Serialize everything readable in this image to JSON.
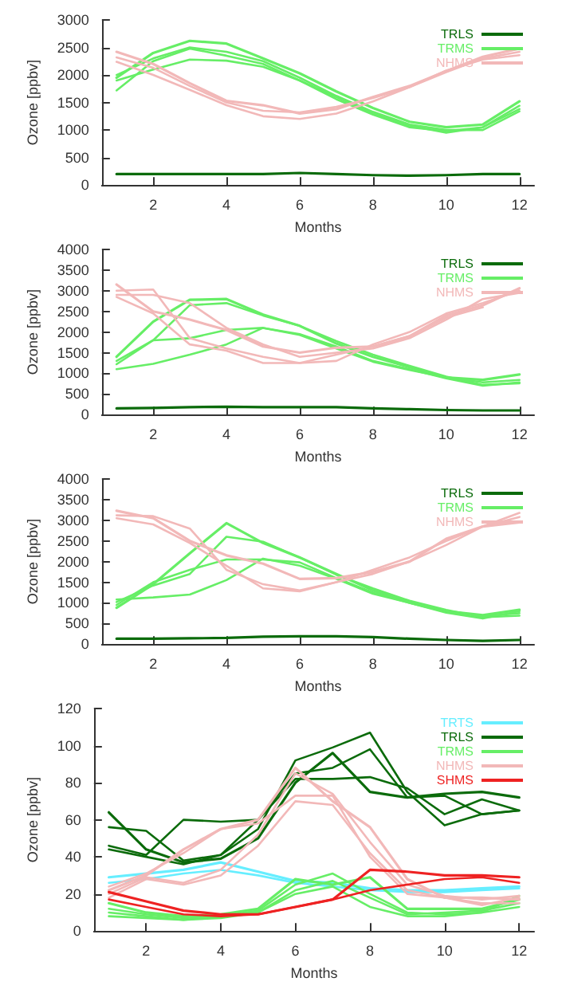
{
  "chart_data": [
    {
      "type": "line",
      "xlabel": "Months",
      "ylabel": "Ozone [ppbv]",
      "x": [
        1,
        2,
        3,
        4,
        5,
        6,
        7,
        8,
        9,
        10,
        11,
        12
      ],
      "xlim": [
        0.6,
        12.4
      ],
      "xticks": [
        2,
        4,
        6,
        8,
        10,
        12
      ],
      "ylim": [
        0,
        3000
      ],
      "yticks": [
        0,
        500,
        1000,
        1500,
        2000,
        2500,
        3000
      ],
      "legend": "top right",
      "series": [
        {
          "name": "TRLS",
          "color": "#0b6b0b",
          "values": [
            200,
            200,
            200,
            200,
            200,
            220,
            200,
            180,
            170,
            180,
            200,
            200
          ]
        },
        {
          "name": "TRMS",
          "color": "#66ee66",
          "values": [
            1950,
            2400,
            2620,
            2570,
            2300,
            2030,
            1700,
            1400,
            1150,
            1050,
            1100,
            1520
          ]
        },
        {
          "color": "#66ee66",
          "values": [
            2000,
            2300,
            2500,
            2420,
            2250,
            1950,
            1620,
            1330,
            1100,
            1000,
            1000,
            1340
          ]
        },
        {
          "color": "#66ee66",
          "values": [
            1720,
            2250,
            2480,
            2350,
            2200,
            1900,
            1600,
            1300,
            1080,
            950,
            1050,
            1380
          ]
        },
        {
          "color": "#66ee66",
          "values": [
            1900,
            2100,
            2280,
            2260,
            2150,
            1900,
            1560,
            1280,
            1050,
            980,
            1050,
            1440
          ]
        },
        {
          "name": "NHMS",
          "color": "#f2b8b8",
          "values": [
            2420,
            2200,
            1850,
            1530,
            1450,
            1300,
            1380,
            1600,
            1800,
            2070,
            2330,
            2480
          ]
        },
        {
          "color": "#f2b8b8",
          "values": [
            2320,
            2130,
            1800,
            1500,
            1350,
            1320,
            1420,
            1580,
            1780,
            2050,
            2300,
            2420
          ]
        },
        {
          "color": "#f2b8b8",
          "values": [
            2240,
            2000,
            1730,
            1450,
            1250,
            1200,
            1300,
            1520,
            1780,
            2080,
            2280,
            2360
          ]
        }
      ]
    },
    {
      "type": "line",
      "xlabel": "Months",
      "ylabel": "Ozone [ppbv]",
      "x": [
        1,
        2,
        3,
        4,
        5,
        6,
        7,
        8,
        9,
        10,
        11,
        12
      ],
      "xlim": [
        0.6,
        12.4
      ],
      "xticks": [
        2,
        4,
        6,
        8,
        10,
        12
      ],
      "ylim": [
        0,
        4000
      ],
      "yticks": [
        0,
        500,
        1000,
        1500,
        2000,
        2500,
        3000,
        3500,
        4000
      ],
      "legend": "top right",
      "series": [
        {
          "name": "TRLS",
          "color": "#0b6b0b",
          "values": [
            150,
            160,
            180,
            190,
            180,
            180,
            180,
            150,
            130,
            110,
            100,
            100
          ]
        },
        {
          "name": "TRMS",
          "color": "#66ee66",
          "values": [
            1400,
            2250,
            2780,
            2800,
            2420,
            2150,
            1720,
            1400,
            1150,
            900,
            840,
            970
          ]
        },
        {
          "color": "#66ee66",
          "values": [
            1220,
            1800,
            2650,
            2700,
            2400,
            2150,
            1780,
            1450,
            1180,
            920,
            720,
            760
          ]
        },
        {
          "color": "#66ee66",
          "values": [
            1300,
            1800,
            1850,
            2050,
            2100,
            1930,
            1600,
            1280,
            1080,
            900,
            780,
            840
          ]
        },
        {
          "color": "#66ee66",
          "values": [
            1100,
            1230,
            1450,
            1700,
            2100,
            1950,
            1650,
            1300,
            1100,
            880,
            700,
            780
          ]
        },
        {
          "name": "NHMS",
          "color": "#f2b8b8",
          "values": [
            3150,
            2500,
            2300,
            2050,
            1650,
            1500,
            1620,
            1650,
            1900,
            2400,
            2650,
            3060
          ]
        },
        {
          "color": "#f2b8b8",
          "values": [
            3000,
            3030,
            1850,
            1600,
            1400,
            1250,
            1300,
            1700,
            2000,
            2450,
            2700,
            3000
          ]
        },
        {
          "color": "#f2b8b8",
          "values": [
            2900,
            2900,
            2700,
            2100,
            1700,
            1400,
            1500,
            1600,
            1850,
            2300,
            2800,
            2950
          ]
        },
        {
          "color": "#f2b8b8",
          "values": [
            2850,
            2450,
            1700,
            1550,
            1250,
            1250,
            1450,
            1650,
            1900,
            2350,
            2600,
            null
          ]
        }
      ]
    },
    {
      "type": "line",
      "xlabel": "Months",
      "ylabel": "Ozone [ppbv]",
      "x": [
        1,
        2,
        3,
        4,
        5,
        6,
        7,
        8,
        9,
        10,
        11,
        12
      ],
      "xlim": [
        0.6,
        12.4
      ],
      "xticks": [
        2,
        4,
        6,
        8,
        10,
        12
      ],
      "ylim": [
        0,
        4000
      ],
      "yticks": [
        0,
        500,
        1000,
        1500,
        2000,
        2500,
        3000,
        3500,
        4000
      ],
      "legend": "top right",
      "series": [
        {
          "name": "TRLS",
          "color": "#0b6b0b",
          "values": [
            130,
            130,
            140,
            150,
            180,
            190,
            190,
            170,
            130,
            100,
            80,
            100
          ]
        },
        {
          "name": "TRMS",
          "color": "#66ee66",
          "values": [
            880,
            1450,
            2200,
            2930,
            2450,
            2100,
            1700,
            1300,
            1030,
            800,
            700,
            830
          ]
        },
        {
          "color": "#66ee66",
          "values": [
            1020,
            1420,
            1700,
            2600,
            2480,
            2100,
            1680,
            1350,
            1050,
            830,
            650,
            690
          ]
        },
        {
          "color": "#66ee66",
          "values": [
            950,
            1500,
            1800,
            2050,
            2050,
            1980,
            1600,
            1250,
            1000,
            780,
            680,
            750
          ]
        },
        {
          "color": "#66ee66",
          "values": [
            1080,
            1130,
            1200,
            1550,
            2070,
            1900,
            1580,
            1220,
            1000,
            760,
            620,
            800
          ]
        },
        {
          "name": "NHMS",
          "color": "#f2b8b8",
          "values": [
            3230,
            3050,
            2500,
            2150,
            1950,
            1580,
            1600,
            1750,
            2000,
            2550,
            2850,
            2950
          ]
        },
        {
          "color": "#f2b8b8",
          "values": [
            3120,
            3100,
            2800,
            1800,
            1450,
            1300,
            1500,
            1800,
            2100,
            2500,
            2850,
            3180
          ]
        },
        {
          "color": "#f2b8b8",
          "values": [
            3050,
            2900,
            2450,
            1900,
            1350,
            1280,
            1500,
            1700,
            2000,
            2400,
            2850,
            3080
          ]
        }
      ]
    },
    {
      "type": "line",
      "xlabel": "Months",
      "ylabel": "Ozone [ppbv]",
      "x": [
        1,
        2,
        3,
        4,
        5,
        6,
        7,
        8,
        9,
        10,
        11,
        12
      ],
      "xlim": [
        0.6,
        12.4
      ],
      "xticks": [
        2,
        4,
        6,
        8,
        10,
        12
      ],
      "ylim": [
        0,
        120
      ],
      "yticks": [
        0,
        20,
        40,
        60,
        80,
        100,
        120
      ],
      "legend": "top right",
      "series": [
        {
          "name": "TRTS",
          "color": "#66eeff",
          "values": [
            29,
            31,
            33,
            37,
            32,
            27,
            26,
            23,
            22,
            22,
            23,
            24
          ]
        },
        {
          "color": "#66eeff",
          "values": [
            26,
            28,
            31,
            33,
            30,
            26,
            24,
            22,
            21,
            21,
            22,
            23
          ]
        },
        {
          "name": "TRLS",
          "color": "#0b6b0b",
          "values": [
            64,
            44,
            37,
            39,
            50,
            80,
            96,
            75,
            72,
            74,
            75,
            72
          ]
        },
        {
          "color": "#0b6b0b",
          "values": [
            56,
            54,
            38,
            41,
            55,
            92,
            99,
            107,
            75,
            57,
            63,
            65
          ]
        },
        {
          "color": "#0b6b0b",
          "values": [
            46,
            41,
            60,
            59,
            60,
            82,
            82,
            83,
            77,
            63,
            71,
            65
          ]
        },
        {
          "color": "#0b6b0b",
          "values": [
            44,
            40,
            36,
            41,
            60,
            85,
            88,
            98,
            72,
            73,
            63,
            65
          ]
        },
        {
          "name": "TRMS",
          "color": "#66ee66",
          "values": [
            15,
            10,
            8,
            9,
            12,
            28,
            25,
            29,
            12,
            12,
            12,
            17
          ]
        },
        {
          "color": "#66ee66",
          "values": [
            12,
            9,
            7,
            8,
            11,
            25,
            31,
            20,
            10,
            9,
            10,
            13
          ]
        },
        {
          "color": "#66ee66",
          "values": [
            10,
            8,
            6,
            8,
            10,
            22,
            27,
            18,
            9,
            10,
            11,
            15
          ]
        },
        {
          "color": "#66ee66",
          "values": [
            8,
            7,
            6,
            7,
            10,
            20,
            24,
            13,
            8,
            8,
            10,
            19
          ]
        },
        {
          "name": "NHMS",
          "color": "#f2b8b8",
          "values": [
            22,
            30,
            44,
            55,
            60,
            88,
            70,
            56,
            28,
            18,
            18,
            17
          ]
        },
        {
          "color": "#f2b8b8",
          "values": [
            20,
            29,
            26,
            33,
            52,
            85,
            74,
            48,
            25,
            19,
            17,
            19
          ]
        },
        {
          "color": "#f2b8b8",
          "values": [
            18,
            28,
            25,
            30,
            46,
            70,
            68,
            42,
            22,
            18,
            15,
            15
          ]
        },
        {
          "color": "#f2b8b8",
          "values": [
            24,
            31,
            42,
            55,
            58,
            73,
            73,
            40,
            20,
            18,
            14,
            18
          ]
        },
        {
          "name": "SHMS",
          "color": "#ee2222",
          "values": [
            21,
            16,
            11,
            9,
            9,
            13,
            17,
            33,
            32,
            30,
            30,
            29
          ]
        },
        {
          "color": "#ee2222",
          "values": [
            17,
            13,
            9,
            8,
            9,
            13,
            17,
            22,
            25,
            28,
            29,
            26
          ]
        }
      ]
    }
  ]
}
